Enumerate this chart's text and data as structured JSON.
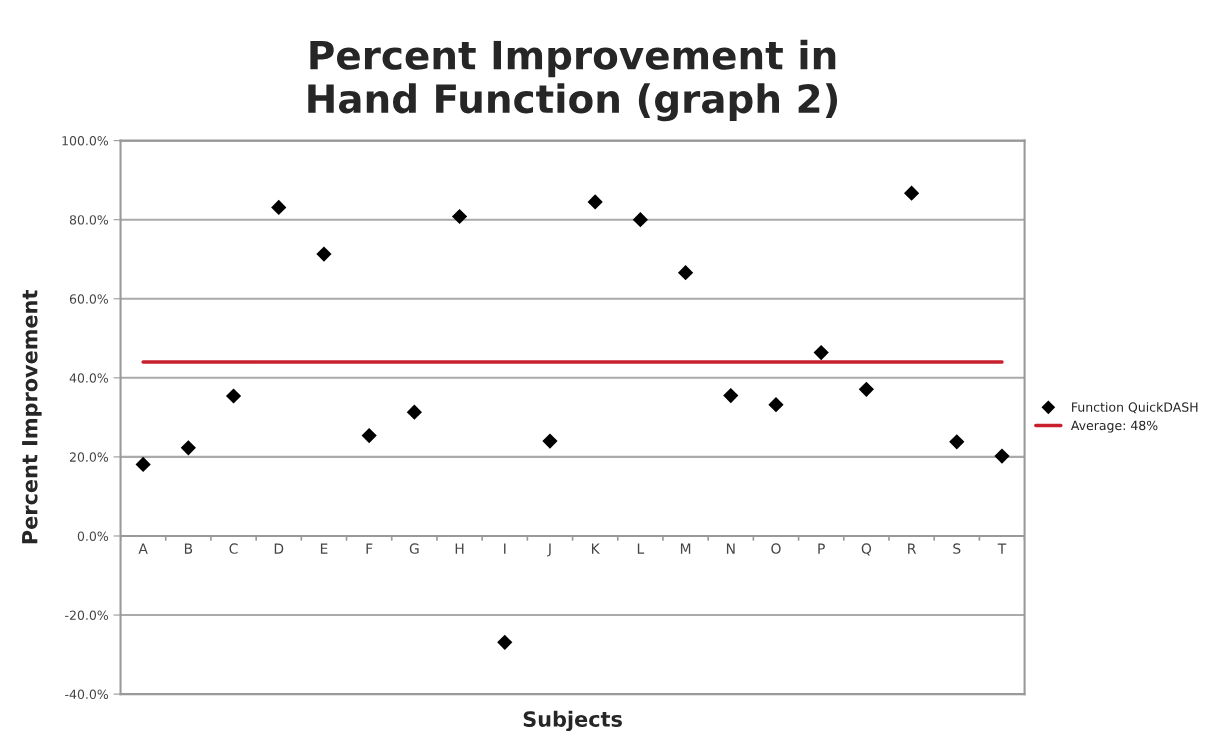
{
  "chart_data": {
    "type": "scatter",
    "title": "Percent Improvement in\nHand Function (graph 2)",
    "xlabel": "Subjects",
    "ylabel": "Percent Improvement",
    "categories": [
      "A",
      "B",
      "C",
      "D",
      "E",
      "F",
      "G",
      "H",
      "I",
      "J",
      "K",
      "L",
      "M",
      "N",
      "O",
      "P",
      "Q",
      "R",
      "S",
      "T"
    ],
    "series": [
      {
        "name": "Function QuickDASH",
        "color": "#000000",
        "marker": "diamond",
        "values": [
          18.1,
          22.3,
          35.4,
          83.1,
          71.3,
          25.4,
          31.3,
          80.8,
          -26.9,
          24.0,
          84.5,
          80.0,
          66.6,
          35.5,
          33.2,
          46.4,
          37.1,
          86.7,
          23.8,
          20.2
        ]
      },
      {
        "name": "Average: 48%",
        "type": "line",
        "color": "#c8202c",
        "marker": "none",
        "line_style": "solid",
        "values": [
          44,
          44,
          44,
          44,
          44,
          44,
          44,
          44,
          44,
          44,
          44,
          44,
          44,
          44,
          44,
          44,
          44,
          44,
          44,
          44
        ]
      }
    ],
    "ylim": [
      -40,
      100
    ],
    "yticks": [
      {
        "value": -40,
        "label": "-40.0%"
      },
      {
        "value": -20,
        "label": "-20.0%"
      },
      {
        "value": 0,
        "label": "0.0%"
      },
      {
        "value": 20,
        "label": "20.0%"
      },
      {
        "value": 40,
        "label": "40.0%"
      },
      {
        "value": 60,
        "label": "60.0%"
      },
      {
        "value": 80,
        "label": "80.0%"
      },
      {
        "value": 100,
        "label": "100.0%"
      }
    ],
    "grid": "y",
    "legend": "right"
  }
}
